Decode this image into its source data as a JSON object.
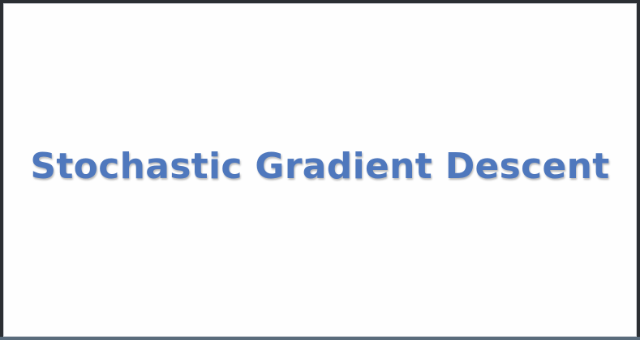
{
  "slide": {
    "title": "Stochastic Gradient Descent",
    "title_color": "#4f78bd",
    "background_color": "#fefefe"
  },
  "frame": {
    "border_color": "#2b2f33",
    "bottom_bar_color": "#5a6c7c"
  }
}
